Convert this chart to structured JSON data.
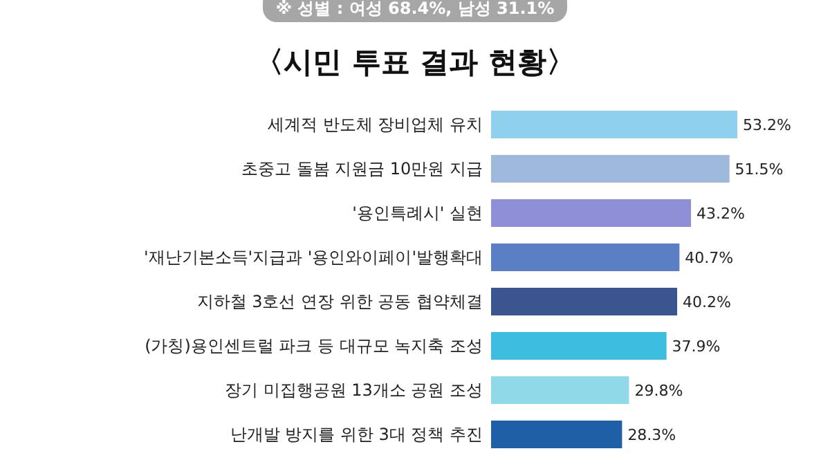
{
  "chart_data": {
    "type": "bar",
    "orientation": "horizontal",
    "title": "〈시민 투표 결과 현황〉",
    "annotations": [
      "※ 성별 : 여성 68.4%, 남성 31.1%"
    ],
    "categories": [
      "세계적 반도체 장비업체 유치",
      "초중고 돌봄 지원금 10만원 지급",
      "'용인특례시' 실현",
      "'재난기본소득'지급과 '용인와이페이'발행확대",
      "지하철 3호선 연장 위한 공동 협약체결",
      "(가칭)용인센트럴 파크 등 대규모 녹지축 조성",
      "장기 미집행공원 13개소 공원 조성",
      "난개발 방지를 위한 3대 정책 추진"
    ],
    "values": [
      53.2,
      51.5,
      43.2,
      40.7,
      40.2,
      37.9,
      29.8,
      28.3
    ],
    "value_labels": [
      "53.2%",
      "51.5%",
      "43.2%",
      "40.7%",
      "40.2%",
      "37.9%",
      "29.8%",
      "28.3%"
    ],
    "colors": [
      "#8fd0ee",
      "#9fb9dc",
      "#8f8fd8",
      "#5b7fc4",
      "#3a5590",
      "#3dbde0",
      "#8fd9e8",
      "#1f5fa8"
    ]
  }
}
